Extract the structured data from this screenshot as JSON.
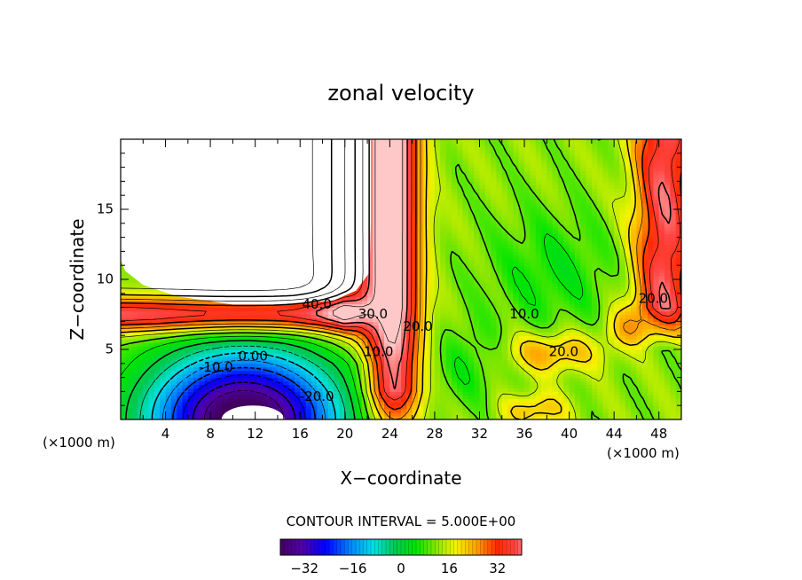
{
  "chart_data": {
    "type": "heatmap",
    "title": "zonal velocity",
    "xlabel": "X−coordinate",
    "ylabel": "Z−coordinate",
    "x_unit_left": "(×1000 m)",
    "x_unit_right": "(×1000 m)",
    "xlim": [
      0,
      50
    ],
    "ylim": [
      0,
      20
    ],
    "xticks": [
      4,
      8,
      12,
      16,
      20,
      24,
      28,
      32,
      36,
      40,
      44,
      48
    ],
    "xtick_labels": [
      "4",
      "8",
      "12",
      "16",
      "20",
      "24",
      "28",
      "32",
      "36",
      "40",
      "44",
      "48"
    ],
    "yticks": [
      5,
      10,
      15
    ],
    "ytick_labels": [
      "5",
      "10",
      "15"
    ],
    "contour_interval_text": "CONTOUR INTERVAL = 5.000E+00",
    "contour_labels": [
      {
        "text": "40.0",
        "x": 17.5,
        "z": 8.2
      },
      {
        "text": "30.0",
        "x": 22.5,
        "z": 7.5
      },
      {
        "text": "20.0",
        "x": 26.5,
        "z": 6.6
      },
      {
        "text": "10.0",
        "x": 23.0,
        "z": 4.8
      },
      {
        "text": "0.00",
        "x": 11.8,
        "z": 4.5
      },
      {
        "text": "-10.0",
        "x": 8.5,
        "z": 3.7
      },
      {
        "text": "-20.0",
        "x": 17.5,
        "z": 1.6
      },
      {
        "text": "10.0",
        "x": 36.0,
        "z": 7.5
      },
      {
        "text": "20.0",
        "x": 39.5,
        "z": 4.8
      },
      {
        "text": "20.0",
        "x": 47.5,
        "z": 8.6
      }
    ],
    "colorbar": {
      "min": -40,
      "max": 40,
      "ticks": [
        -32,
        -16,
        0,
        16,
        32
      ],
      "tick_labels": [
        "−32",
        "−16",
        "0",
        "16",
        "32"
      ]
    },
    "field_description_regions": [
      {
        "name": "negative jet core",
        "x_center": 11,
        "z_center": 0.5,
        "min_value": -40
      },
      {
        "name": "upper blanked region",
        "x_range": [
          0,
          22
        ],
        "z_range": [
          8.5,
          20
        ]
      },
      {
        "name": "strong positive band",
        "x_range": [
          20,
          28
        ],
        "z_range": [
          0,
          20
        ],
        "max_value": 45
      },
      {
        "name": "right positive band",
        "x_range": [
          44,
          50
        ],
        "z_range": [
          6,
          20
        ],
        "max_value": 40
      },
      {
        "name": "low-speed core",
        "x_center": 38,
        "z_center": 10,
        "value": 5
      }
    ]
  },
  "colors": {
    "background": "#ffffff",
    "axes": "#000000",
    "blank_region": "#ffffff"
  }
}
